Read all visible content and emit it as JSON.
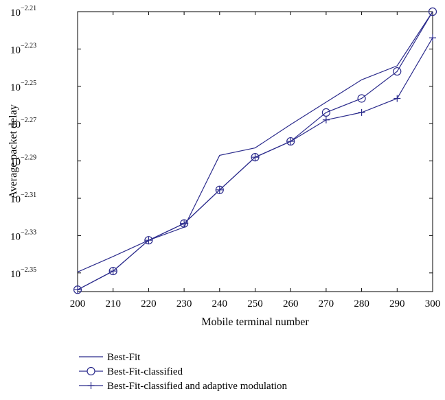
{
  "chart_data": {
    "type": "line",
    "title": "",
    "xlabel": "Mobile terminal number",
    "ylabel": "Average packet delay",
    "x": [
      200,
      210,
      220,
      230,
      240,
      250,
      260,
      270,
      280,
      290,
      300
    ],
    "xlim": [
      200,
      300
    ],
    "xticks": [
      "200",
      "210",
      "220",
      "230",
      "240",
      "250",
      "260",
      "270",
      "280",
      "290",
      "300"
    ],
    "yscale": "log10",
    "ylim_exponent": [
      -2.36,
      -2.21
    ],
    "ytick_base": "10",
    "yticks": [
      "−2.21",
      "−2.23",
      "−2.25",
      "−2.27",
      "−2.29",
      "−2.31",
      "−2.33",
      "−2.35"
    ],
    "ytick_exponents": [
      -2.21,
      -2.23,
      -2.25,
      -2.27,
      -2.29,
      -2.31,
      -2.33,
      -2.35
    ],
    "series": [
      {
        "name": "Best-Fit",
        "marker": "none",
        "exponents": [
          -2.3495,
          -2.3412,
          -2.3325,
          -2.3255,
          -2.287,
          -2.283,
          -2.2705,
          -2.2585,
          -2.2465,
          -2.239,
          -2.21
        ]
      },
      {
        "name": "Best-Fit-classified",
        "marker": "circle",
        "exponents": [
          -2.359,
          -2.349,
          -2.3325,
          -2.3235,
          -2.3055,
          -2.288,
          -2.2795,
          -2.264,
          -2.2565,
          -2.242,
          -2.21
        ]
      },
      {
        "name": "Best-Fit-classified and adaptive modulation",
        "marker": "plus",
        "exponents": [
          -2.359,
          -2.349,
          -2.3325,
          -2.3235,
          -2.3055,
          -2.288,
          -2.2795,
          -2.268,
          -2.264,
          -2.2565,
          -2.224
        ]
      }
    ],
    "grid": false,
    "legend_position": "below",
    "line_color": "#2b2b8c"
  }
}
